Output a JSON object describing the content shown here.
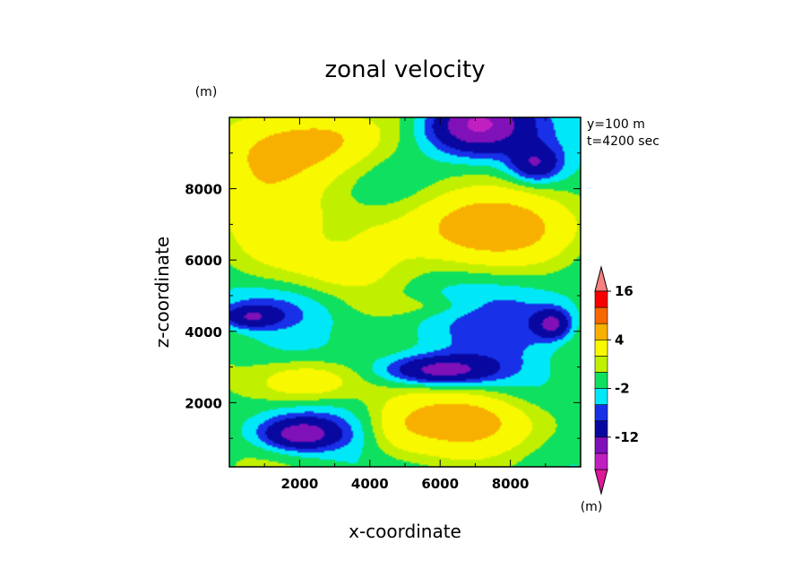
{
  "chart_data": {
    "type": "heatmap",
    "title": "zonal velocity",
    "xlabel": "x-coordinate",
    "ylabel": "z-coordinate",
    "yunit": "(m)",
    "cbar_unit": "(m)",
    "annotation_lines": [
      "y=100 m",
      "t=4200 sec"
    ],
    "xlim": [
      0,
      10000
    ],
    "ylim": [
      200,
      10000
    ],
    "xticks": [
      2000,
      4000,
      6000,
      8000
    ],
    "xtick_labels": [
      "2000",
      "4000",
      "6000",
      "8000"
    ],
    "yticks": [
      2000,
      4000,
      6000,
      8000
    ],
    "ytick_labels": [
      "2000",
      "4000",
      "6000",
      "8000"
    ],
    "levels": [
      -20,
      -16,
      -12,
      -8,
      -4,
      -2,
      0,
      2,
      4,
      8,
      12,
      16,
      20
    ],
    "cbar_labels": [
      {
        "value": 16,
        "text": "16"
      },
      {
        "value": 4,
        "text": "4"
      },
      {
        "value": -2,
        "text": "-2"
      },
      {
        "value": -12,
        "text": "-12"
      }
    ],
    "colors": [
      "#e01898",
      "#c020c0",
      "#8010b8",
      "#0808a0",
      "#1830e8",
      "#00e8f8",
      "#10e060",
      "#c0f000",
      "#f8f800",
      "#f8b000",
      "#f86800",
      "#f80000",
      "#f88080"
    ],
    "blobs": [
      {
        "x": 2000,
        "y": 9000,
        "sx": 2200,
        "sy": 1000,
        "a": 6
      },
      {
        "x": 800,
        "y": 7000,
        "sx": 1500,
        "sy": 1500,
        "a": 6
      },
      {
        "x": 3000,
        "y": 9500,
        "sx": 1500,
        "sy": 700,
        "a": 4
      },
      {
        "x": 7000,
        "y": 9800,
        "sx": 1400,
        "sy": 800,
        "a": -14
      },
      {
        "x": 8700,
        "y": 8700,
        "sx": 700,
        "sy": 500,
        "a": -8
      },
      {
        "x": 7300,
        "y": 6900,
        "sx": 2600,
        "sy": 1000,
        "a": 9
      },
      {
        "x": 3300,
        "y": 6200,
        "sx": 1800,
        "sy": 1400,
        "a": 3
      },
      {
        "x": 3000,
        "y": 6600,
        "sx": 900,
        "sy": 600,
        "a": -2
      },
      {
        "x": 1500,
        "y": 4700,
        "sx": 2200,
        "sy": 700,
        "a": -4
      },
      {
        "x": 600,
        "y": 4400,
        "sx": 800,
        "sy": 300,
        "a": -7
      },
      {
        "x": 8400,
        "y": 4500,
        "sx": 1700,
        "sy": 900,
        "a": -3
      },
      {
        "x": 9200,
        "y": 4200,
        "sx": 500,
        "sy": 400,
        "a": -9
      },
      {
        "x": 7500,
        "y": 3500,
        "sx": 2200,
        "sy": 900,
        "a": -2
      },
      {
        "x": 6000,
        "y": 2900,
        "sx": 1500,
        "sy": 400,
        "a": -11
      },
      {
        "x": 2200,
        "y": 2600,
        "sx": 1500,
        "sy": 600,
        "a": 7
      },
      {
        "x": 2200,
        "y": 1200,
        "sx": 1800,
        "sy": 700,
        "a": -5
      },
      {
        "x": 2000,
        "y": 1100,
        "sx": 1000,
        "sy": 400,
        "a": -8
      },
      {
        "x": 7000,
        "y": 1300,
        "sx": 2500,
        "sy": 900,
        "a": 7
      },
      {
        "x": 6500,
        "y": 1600,
        "sx": 1400,
        "sy": 500,
        "a": 3
      },
      {
        "x": 4800,
        "y": 1200,
        "sx": 800,
        "sy": 800,
        "a": 2
      },
      {
        "x": 9000,
        "y": 2400,
        "sx": 1400,
        "sy": 900,
        "a": -1
      },
      {
        "x": 5500,
        "y": 4700,
        "sx": 1700,
        "sy": 300,
        "a": 2
      }
    ]
  }
}
